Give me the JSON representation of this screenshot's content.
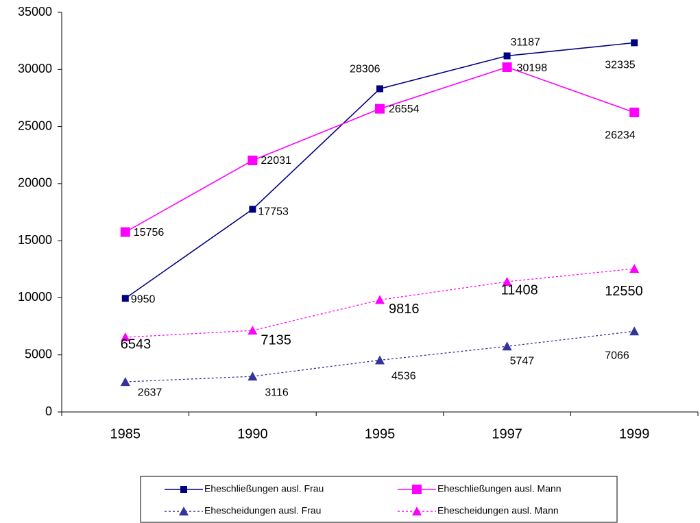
{
  "chart_data": {
    "type": "line",
    "categories": [
      "1985",
      "1990",
      "1995",
      "1997",
      "1999"
    ],
    "series": [
      {
        "name": "Eheschließungen ausl. Frau",
        "color": "#000080",
        "line": "solid",
        "marker": "square",
        "values": [
          9950,
          17753,
          28306,
          31187,
          32335
        ]
      },
      {
        "name": "Eheschließungen ausl. Mann",
        "color": "#FF00FF",
        "line": "solid",
        "marker": "square",
        "values": [
          15756,
          22031,
          26554,
          30198,
          26234
        ]
      },
      {
        "name": "Ehescheidungen ausl. Frau",
        "color": "#333399",
        "line": "dotted",
        "marker": "triangle",
        "values": [
          2637,
          3116,
          4536,
          5747,
          7066
        ]
      },
      {
        "name": "Ehescheidungen ausl. Mann",
        "color": "#FF00FF",
        "line": "dotted",
        "marker": "triangle",
        "values": [
          6543,
          7135,
          9816,
          11408,
          12550
        ]
      }
    ],
    "ylim": [
      0,
      35000
    ],
    "yticks": [
      0,
      5000,
      10000,
      15000,
      20000,
      25000,
      30000,
      35000
    ],
    "grid": false,
    "legend": "bottom"
  }
}
